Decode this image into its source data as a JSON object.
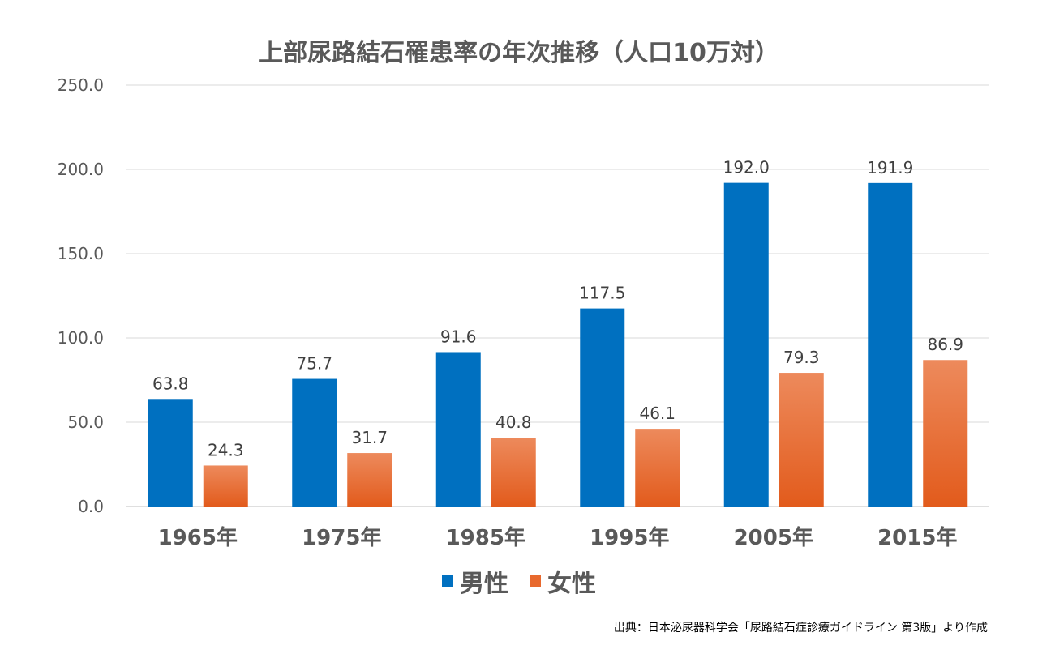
{
  "chart_data": {
    "type": "bar",
    "title": "上部尿路結石罹患率の年次推移（人口10万対）",
    "categories": [
      "1965年",
      "1975年",
      "1985年",
      "1995年",
      "2005年",
      "2015年"
    ],
    "series": [
      {
        "name": "男性",
        "color": "#0070c0",
        "values": [
          63.8,
          75.7,
          91.6,
          117.5,
          192.0,
          191.9
        ]
      },
      {
        "name": "女性",
        "color": "#e8692e",
        "values": [
          24.3,
          31.7,
          40.8,
          46.1,
          79.3,
          86.9
        ]
      }
    ],
    "ylim": [
      0,
      250
    ],
    "yticks": [
      "0.0",
      "50.0",
      "100.0",
      "150.0",
      "200.0",
      "250.0"
    ],
    "grid": true,
    "legend": "bottom",
    "xlabel": "",
    "ylabel": ""
  },
  "source": "出典：日本泌尿器科学会「尿路結石症診療ガイドライン 第3版」より作成"
}
